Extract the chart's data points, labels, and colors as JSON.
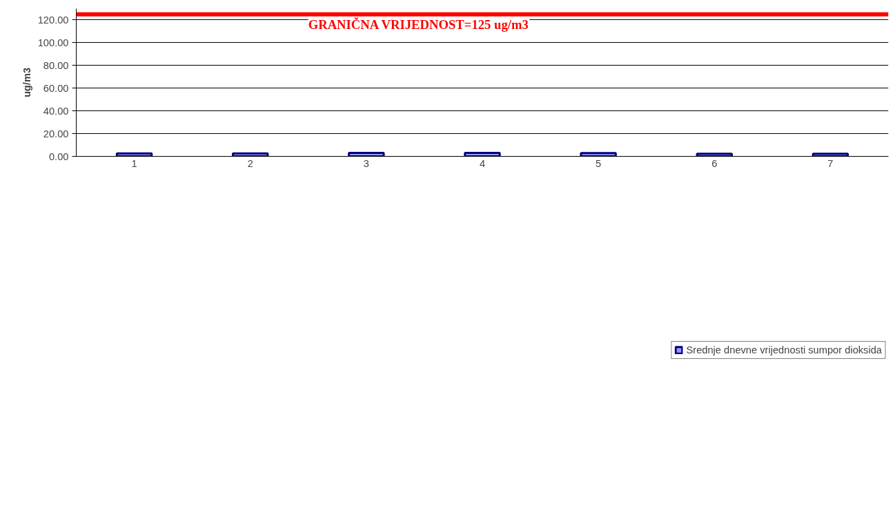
{
  "chart_data": {
    "type": "bar",
    "ylabel": "ug/m3",
    "categories": [
      "1",
      "2",
      "3",
      "4",
      "5",
      "6",
      "7"
    ],
    "series": [
      {
        "name": "Srednje dnevne vrijednosti sumpor dioksida",
        "color": "#9999ff",
        "values": [
          2.6,
          2.6,
          3.1,
          3.1,
          2.9,
          2.3,
          2.3
        ]
      }
    ],
    "ylim": [
      0,
      130
    ],
    "yticks": [
      {
        "value": 0,
        "label": "0.00"
      },
      {
        "value": 20,
        "label": "20.00"
      },
      {
        "value": 40,
        "label": "40.00"
      },
      {
        "value": 60,
        "label": "60.00"
      },
      {
        "value": 80,
        "label": "80.00"
      },
      {
        "value": 100,
        "label": "100.00"
      },
      {
        "value": 120,
        "label": "120.00"
      }
    ],
    "ref_lines": [
      {
        "axis": "y",
        "value": 125,
        "label": "GRANIČNA VRIJEDNOST=125 ug/m3",
        "color": "#ff0000"
      }
    ],
    "grid": "y",
    "legend": "bottom"
  }
}
